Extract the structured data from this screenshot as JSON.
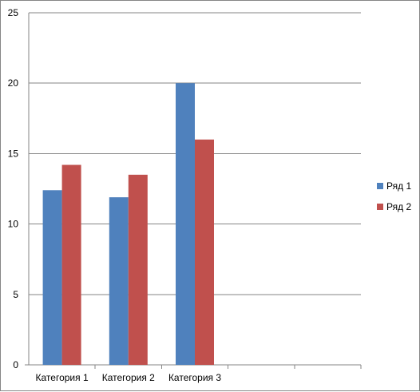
{
  "chart_data": {
    "type": "bar",
    "categories": [
      "Категория 1",
      "Категория 2",
      "Категория 3",
      "",
      ""
    ],
    "series": [
      {
        "name": "Ряд 1",
        "values": [
          12.4,
          11.9,
          20.0,
          null,
          null
        ],
        "color": "#4F81BD"
      },
      {
        "name": "Ряд 2",
        "values": [
          14.2,
          13.5,
          16.0,
          null,
          null
        ],
        "color": "#C0504D"
      }
    ],
    "ylim": [
      0,
      25
    ],
    "yticks": [
      0,
      5,
      10,
      15,
      20,
      25
    ],
    "grid": true,
    "legend_position": "right",
    "title": "",
    "xlabel": "",
    "ylabel": ""
  }
}
